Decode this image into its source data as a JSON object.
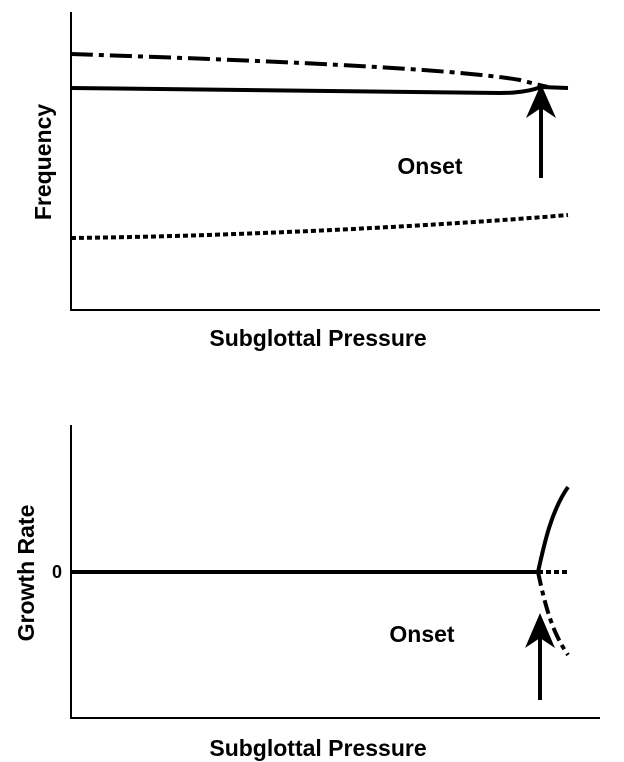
{
  "panels": [
    {
      "y_label": "Frequency",
      "x_label": "Subglottal Pressure",
      "annotation": "Onset"
    },
    {
      "y_label": "Growth Rate",
      "x_label": "Subglottal Pressure",
      "annotation": "Onset",
      "y_tick": "0"
    }
  ]
}
